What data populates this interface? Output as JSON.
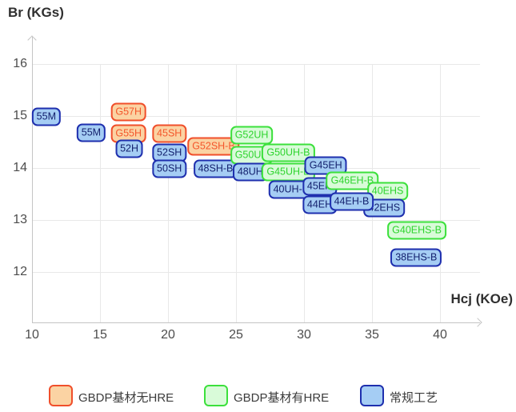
{
  "chart_data": {
    "type": "scatter",
    "title": "",
    "xlabel": "Hcj (KOe)",
    "ylabel": "Br (KGs)",
    "x_ticks": [
      10,
      15,
      20,
      25,
      30,
      35,
      40
    ],
    "y_ticks": [
      16,
      15,
      14,
      13,
      12
    ],
    "xlim": [
      10,
      43
    ],
    "ylim": [
      11,
      16.5
    ],
    "grid": true,
    "legend_position": "bottom",
    "series_styles": {
      "gbdp_no_hre": {
        "name": "GBDP基材无HRE",
        "fill": "#fbd3a3",
        "border": "#f04f2b",
        "text": "#f4572c"
      },
      "gbdp_hre": {
        "name": "GBDP基材有HRE",
        "fill": "#d9fbd9",
        "border": "#3ce03c",
        "text": "#2ed42e"
      },
      "conventional": {
        "name": "常规工艺",
        "fill": "#a5cdf4",
        "border": "#1e2fae",
        "text": "#14216e"
      }
    },
    "points": [
      {
        "label": "55M",
        "series": "conventional",
        "hcj": 11.05,
        "br": 14.98
      },
      {
        "label": "55M",
        "series": "conventional",
        "hcj": 14.35,
        "br": 14.67
      },
      {
        "label": "G57H",
        "series": "gbdp_no_hre",
        "hcj": 17.1,
        "br": 15.07
      },
      {
        "label": "G55H",
        "series": "gbdp_no_hre",
        "hcj": 17.1,
        "br": 14.66
      },
      {
        "label": "52H",
        "series": "conventional",
        "hcj": 17.15,
        "br": 14.37
      },
      {
        "label": "45SH",
        "series": "gbdp_no_hre",
        "hcj": 20.1,
        "br": 14.66
      },
      {
        "label": "52SH",
        "series": "conventional",
        "hcj": 20.1,
        "br": 14.29
      },
      {
        "label": "50SH",
        "series": "conventional",
        "hcj": 20.1,
        "br": 13.98
      },
      {
        "label": "G52SH-B",
        "series": "gbdp_no_hre",
        "hcj": 23.35,
        "br": 14.42
      },
      {
        "label": "48SH-B",
        "series": "conventional",
        "hcj": 23.5,
        "br": 13.98
      },
      {
        "label": "G52UH",
        "series": "gbdp_hre",
        "hcj": 26.15,
        "br": 14.63
      },
      {
        "label": "G50UH",
        "series": "gbdp_hre",
        "hcj": 26.15,
        "br": 14.25
      },
      {
        "label": "48UH",
        "series": "conventional",
        "hcj": 26.05,
        "br": 13.92
      },
      {
        "label": "G50UH-B",
        "series": "gbdp_hre",
        "hcj": 28.85,
        "br": 14.3
      },
      {
        "label": "G45UH-B",
        "series": "gbdp_hre",
        "hcj": 28.85,
        "br": 13.92
      },
      {
        "label": "40UH-B",
        "series": "conventional",
        "hcj": 29.05,
        "br": 13.58
      },
      {
        "label": "G45EH",
        "series": "conventional",
        "hcj": 31.6,
        "br": 14.05
      },
      {
        "label": "45EH",
        "series": "conventional",
        "hcj": 31.15,
        "br": 13.65
      },
      {
        "label": "44EH",
        "series": "conventional",
        "hcj": 31.15,
        "br": 13.3
      },
      {
        "label": "G46EH-B",
        "series": "gbdp_hre",
        "hcj": 33.55,
        "br": 13.75
      },
      {
        "label": "40EHS",
        "series": "gbdp_hre",
        "hcj": 36.15,
        "br": 13.55
      },
      {
        "label": "42EHS",
        "series": "conventional",
        "hcj": 35.9,
        "br": 13.23
      },
      {
        "label": "44EH-B",
        "series": "conventional",
        "hcj": 33.5,
        "br": 13.35
      },
      {
        "label": "G40EHS-B",
        "series": "gbdp_hre",
        "hcj": 38.3,
        "br": 12.8
      },
      {
        "label": "38EHS-B",
        "series": "conventional",
        "hcj": 38.25,
        "br": 12.27
      }
    ]
  }
}
